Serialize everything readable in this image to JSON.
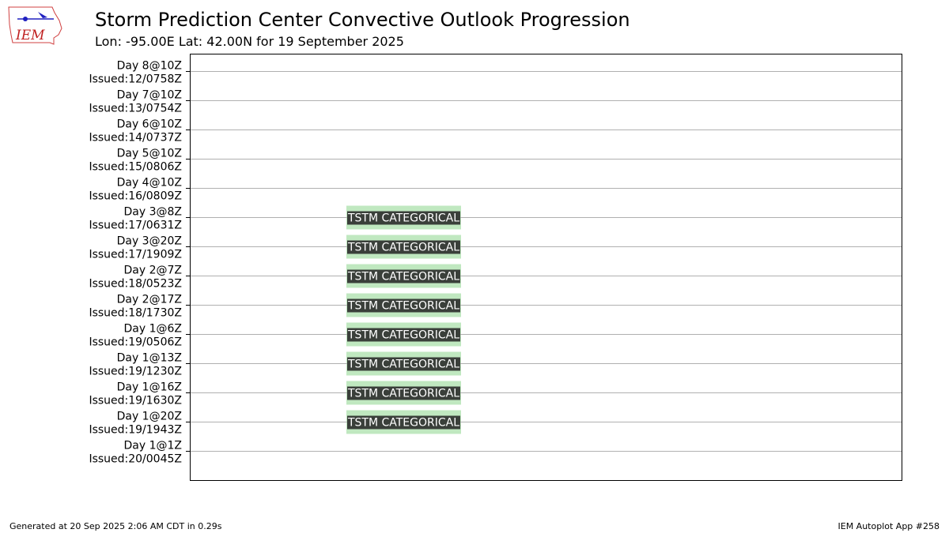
{
  "header": {
    "title": "Storm Prediction Center Convective Outlook Progression",
    "subtitle": "Lon: -95.00E Lat: 42.00N for 19 September 2025",
    "logo_text": "IEM"
  },
  "chart_data": {
    "type": "table",
    "rows": [
      {
        "line1": "Day 8@10Z",
        "line2": "Issued:12/0758Z",
        "outlook": ""
      },
      {
        "line1": "Day 7@10Z",
        "line2": "Issued:13/0754Z",
        "outlook": ""
      },
      {
        "line1": "Day 6@10Z",
        "line2": "Issued:14/0737Z",
        "outlook": ""
      },
      {
        "line1": "Day 5@10Z",
        "line2": "Issued:15/0806Z",
        "outlook": ""
      },
      {
        "line1": "Day 4@10Z",
        "line2": "Issued:16/0809Z",
        "outlook": ""
      },
      {
        "line1": "Day 3@8Z",
        "line2": "Issued:17/0631Z",
        "outlook": "TSTM CATEGORICAL"
      },
      {
        "line1": "Day 3@20Z",
        "line2": "Issued:17/1909Z",
        "outlook": "TSTM CATEGORICAL"
      },
      {
        "line1": "Day 2@7Z",
        "line2": "Issued:18/0523Z",
        "outlook": "TSTM CATEGORICAL"
      },
      {
        "line1": "Day 2@17Z",
        "line2": "Issued:18/1730Z",
        "outlook": "TSTM CATEGORICAL"
      },
      {
        "line1": "Day 1@6Z",
        "line2": "Issued:19/0506Z",
        "outlook": "TSTM CATEGORICAL"
      },
      {
        "line1": "Day 1@13Z",
        "line2": "Issued:19/1230Z",
        "outlook": "TSTM CATEGORICAL"
      },
      {
        "line1": "Day 1@16Z",
        "line2": "Issued:19/1630Z",
        "outlook": "TSTM CATEGORICAL"
      },
      {
        "line1": "Day 1@20Z",
        "line2": "Issued:19/1943Z",
        "outlook": "TSTM CATEGORICAL"
      },
      {
        "line1": "Day 1@1Z",
        "line2": "Issued:20/0045Z",
        "outlook": ""
      }
    ],
    "colors": {
      "tstm_fill": "#c0e8c0",
      "label_box": "#3a3f3a",
      "gridline": "#b0b0b0"
    }
  },
  "footer": {
    "left": "Generated at 20 Sep 2025 2:06 AM CDT in 0.29s",
    "right": "IEM Autoplot App #258"
  }
}
